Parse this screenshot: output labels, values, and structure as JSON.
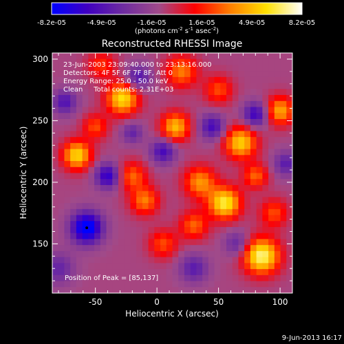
{
  "chart_data": {
    "type": "heatmap",
    "title": "Reconstructed RHESSI Image",
    "xlabel": "Heliocentric X (arcsec)",
    "ylabel": "Heliocentric Y (arcsec)",
    "xlim": [
      -85,
      110
    ],
    "ylim": [
      110,
      305
    ],
    "x_ticks": [
      -50,
      0,
      50,
      100
    ],
    "y_ticks": [
      150,
      200,
      250,
      300
    ],
    "colorbar": {
      "range": [
        -8.2e-05,
        8.2e-05
      ],
      "tick_labels": [
        "-8.2e-05",
        "-4.9e-05",
        "-1.6e-05",
        "1.6e-05",
        "4.9e-05",
        "8.2e-05"
      ],
      "unit_main": "(photons cm",
      "unit_exp1": "-2",
      "unit_mid": " s",
      "unit_exp2": "-1",
      "unit_tail": " asec",
      "unit_exp3": "-2",
      "unit_close": ")",
      "colors": [
        "#0000ff",
        "#4000c0",
        "#6e2ca0",
        "#a04a8a",
        "#ff0000",
        "#ff8000",
        "#ffe000",
        "#ffffff"
      ]
    },
    "annotations": [
      "23-Jun-2003 23:09:40.000 to 23:13:16.000",
      "Detectors: 4F 5F 6F 7F 8F, Att 0",
      "Energy Range: 25.0 - 50.0 keV",
      "Clean     Total counts: 2.31E+03"
    ],
    "peak_text": "Position of Peak = [85,137]",
    "peak_marker": {
      "x": -57,
      "y": 163
    },
    "sources": [
      {
        "x": 85,
        "y": 140,
        "value": 8.2e-05,
        "sigma": 10
      },
      {
        "x": 55,
        "y": 183,
        "value": 7.5e-05,
        "sigma": 9
      },
      {
        "x": -65,
        "y": 222,
        "value": 6.8e-05,
        "sigma": 8
      },
      {
        "x": -28,
        "y": 268,
        "value": 7e-05,
        "sigma": 9
      },
      {
        "x": 15,
        "y": 245,
        "value": 6e-05,
        "sigma": 8
      },
      {
        "x": 68,
        "y": 232,
        "value": 6.5e-05,
        "sigma": 9
      },
      {
        "x": 100,
        "y": 258,
        "value": 5.5e-05,
        "sigma": 8
      },
      {
        "x": 35,
        "y": 200,
        "value": 5e-05,
        "sigma": 9
      },
      {
        "x": -10,
        "y": 185,
        "value": 4.5e-05,
        "sigma": 8
      },
      {
        "x": -20,
        "y": 205,
        "value": 4e-05,
        "sigma": 8
      },
      {
        "x": 5,
        "y": 150,
        "value": 3.5e-05,
        "sigma": 8
      },
      {
        "x": 30,
        "y": 165,
        "value": 4e-05,
        "sigma": 8
      },
      {
        "x": 95,
        "y": 175,
        "value": 3.5e-05,
        "sigma": 8
      },
      {
        "x": 20,
        "y": 290,
        "value": 4.5e-05,
        "sigma": 9
      },
      {
        "x": 50,
        "y": 275,
        "value": 3.5e-05,
        "sigma": 8
      },
      {
        "x": -45,
        "y": 295,
        "value": 3e-05,
        "sigma": 8
      },
      {
        "x": -50,
        "y": 245,
        "value": 3.5e-05,
        "sigma": 7
      },
      {
        "x": 80,
        "y": 205,
        "value": 4e-05,
        "sigma": 7
      },
      {
        "x": -57,
        "y": 163,
        "value": -8e-05,
        "sigma": 9
      },
      {
        "x": -40,
        "y": 205,
        "value": -5.5e-05,
        "sigma": 7
      },
      {
        "x": 5,
        "y": 225,
        "value": -4.5e-05,
        "sigma": 7
      },
      {
        "x": 45,
        "y": 245,
        "value": -4.5e-05,
        "sigma": 7
      },
      {
        "x": 80,
        "y": 255,
        "value": -5e-05,
        "sigma": 7
      },
      {
        "x": -75,
        "y": 265,
        "value": -4e-05,
        "sigma": 7
      },
      {
        "x": -15,
        "y": 285,
        "value": -4e-05,
        "sigma": 7
      },
      {
        "x": 30,
        "y": 130,
        "value": -3.5e-05,
        "sigma": 8
      },
      {
        "x": 105,
        "y": 215,
        "value": -3.5e-05,
        "sigma": 7
      },
      {
        "x": -80,
        "y": 130,
        "value": -3e-05,
        "sigma": 9
      },
      {
        "x": 65,
        "y": 150,
        "value": -3e-05,
        "sigma": 7
      },
      {
        "x": -20,
        "y": 240,
        "value": -3e-05,
        "sigma": 6
      }
    ]
  },
  "timestamp": "9-Jun-2013 16:17"
}
